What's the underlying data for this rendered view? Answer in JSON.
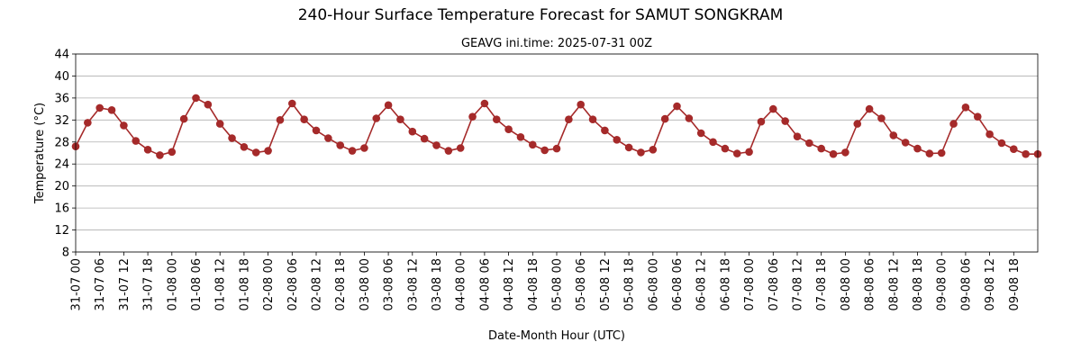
{
  "chart_data": {
    "type": "line",
    "title": "240-Hour Surface Temperature Forecast for SAMUT SONGKRAM",
    "subtitle": "GEAVG ini.time: 2025-07-31 00Z",
    "xlabel": "Date-Month Hour (UTC)",
    "ylabel": "Temperature (°C)",
    "ylim": [
      8,
      44
    ],
    "yticks": [
      8,
      12,
      16,
      20,
      24,
      28,
      32,
      36,
      40,
      44
    ],
    "grid": "horizontal",
    "x_tick_labels": [
      "31-07 00",
      "31-07 06",
      "31-07 12",
      "31-07 18",
      "01-08 00",
      "01-08 06",
      "01-08 12",
      "01-08 18",
      "02-08 00",
      "02-08 06",
      "02-08 12",
      "02-08 18",
      "03-08 00",
      "03-08 06",
      "03-08 12",
      "03-08 18",
      "04-08 00",
      "04-08 06",
      "04-08 12",
      "04-08 18",
      "05-08 00",
      "05-08 06",
      "05-08 12",
      "05-08 18",
      "06-08 00",
      "06-08 06",
      "06-08 12",
      "06-08 18",
      "07-08 00",
      "07-08 06",
      "07-08 12",
      "07-08 18",
      "08-08 00",
      "08-08 06",
      "08-08 12",
      "08-08 18",
      "09-08 00",
      "09-08 06",
      "09-08 12",
      "09-08 18"
    ],
    "x": [
      "31-07 00",
      "31-07 03",
      "31-07 06",
      "31-07 09",
      "31-07 12",
      "31-07 15",
      "31-07 18",
      "31-07 21",
      "01-08 00",
      "01-08 03",
      "01-08 06",
      "01-08 09",
      "01-08 12",
      "01-08 15",
      "01-08 18",
      "01-08 21",
      "02-08 00",
      "02-08 03",
      "02-08 06",
      "02-08 09",
      "02-08 12",
      "02-08 15",
      "02-08 18",
      "02-08 21",
      "03-08 00",
      "03-08 03",
      "03-08 06",
      "03-08 09",
      "03-08 12",
      "03-08 15",
      "03-08 18",
      "03-08 21",
      "04-08 00",
      "04-08 03",
      "04-08 06",
      "04-08 09",
      "04-08 12",
      "04-08 15",
      "04-08 18",
      "04-08 21",
      "05-08 00",
      "05-08 03",
      "05-08 06",
      "05-08 09",
      "05-08 12",
      "05-08 15",
      "05-08 18",
      "05-08 21",
      "06-08 00",
      "06-08 03",
      "06-08 06",
      "06-08 09",
      "06-08 12",
      "06-08 15",
      "06-08 18",
      "06-08 21",
      "07-08 00",
      "07-08 03",
      "07-08 06",
      "07-08 09",
      "07-08 12",
      "07-08 15",
      "07-08 18",
      "07-08 21",
      "08-08 00",
      "08-08 03",
      "08-08 06",
      "08-08 09",
      "08-08 12",
      "08-08 15",
      "08-08 18",
      "08-08 21",
      "09-08 00",
      "09-08 03",
      "09-08 06",
      "09-08 09",
      "09-08 12",
      "09-08 15",
      "09-08 18",
      "09-08 21",
      "10-08 00"
    ],
    "series": [
      {
        "color": "#a52a2a",
        "values": [
          27.2,
          31.5,
          34.2,
          33.8,
          31.0,
          28.2,
          26.6,
          25.6,
          26.2,
          32.2,
          36.0,
          34.8,
          31.3,
          28.7,
          27.1,
          26.1,
          26.4,
          32.0,
          35.0,
          32.1,
          30.1,
          28.7,
          27.4,
          26.4,
          26.9,
          32.3,
          34.7,
          32.1,
          29.9,
          28.6,
          27.4,
          26.4,
          26.9,
          32.6,
          35.0,
          32.1,
          30.3,
          28.9,
          27.5,
          26.5,
          26.8,
          32.1,
          34.8,
          32.1,
          30.1,
          28.4,
          27.0,
          26.1,
          26.6,
          32.2,
          34.5,
          32.3,
          29.6,
          28.0,
          26.8,
          25.9,
          26.2,
          31.7,
          34.0,
          31.8,
          29.0,
          27.8,
          26.8,
          25.8,
          26.1,
          31.3,
          34.0,
          32.3,
          29.2,
          27.9,
          26.8,
          25.9,
          26.0,
          31.3,
          34.3,
          32.6,
          29.4,
          27.8,
          26.7,
          25.8,
          25.8
        ]
      }
    ]
  }
}
